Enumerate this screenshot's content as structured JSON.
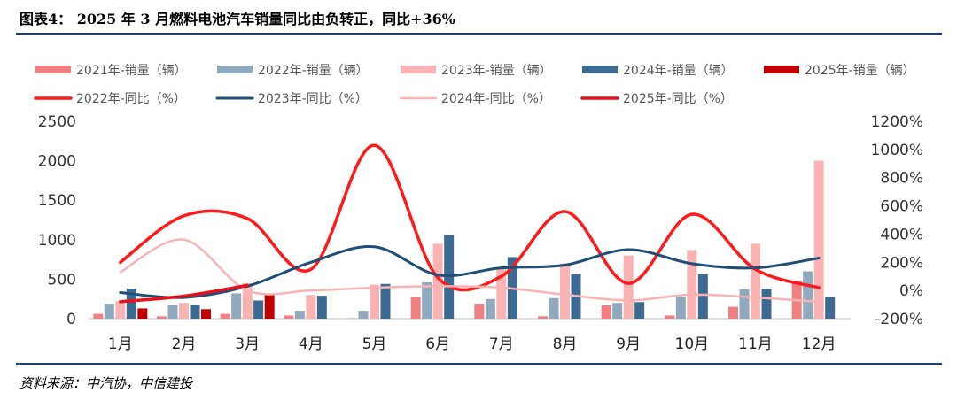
{
  "header": {
    "title": "图表4：    2025 年 3 月燃料电池汽车销量同比由负转正，同比+36%"
  },
  "footer": {
    "source": "资料来源：中汽协，中信建投"
  },
  "chart_data": {
    "type": "bar",
    "categories": [
      "1月",
      "2月",
      "3月",
      "4月",
      "5月",
      "6月",
      "7月",
      "8月",
      "9月",
      "10月",
      "11月",
      "12月"
    ],
    "y_left": {
      "ticks": [
        "0",
        "500",
        "1000",
        "1500",
        "2000",
        "2500"
      ],
      "ylim": [
        0,
        2500
      ]
    },
    "y_right": {
      "ticks": [
        "-200%",
        "0%",
        "200%",
        "400%",
        "600%",
        "800%",
        "1000%",
        "1200%"
      ],
      "ylim": [
        -200,
        1200
      ]
    },
    "bar_series": [
      {
        "name": "2021年-销量（辆）",
        "color": "#f08080",
        "values": [
          60,
          30,
          60,
          40,
          5,
          270,
          190,
          30,
          170,
          40,
          150,
          480
        ]
      },
      {
        "name": "2022年-销量（辆）",
        "color": "#8faabf",
        "values": [
          190,
          180,
          320,
          100,
          100,
          460,
          250,
          260,
          200,
          280,
          370,
          600
        ]
      },
      {
        "name": "2023年-销量（辆）",
        "color": "#f9b3b3",
        "values": [
          220,
          200,
          450,
          300,
          430,
          950,
          650,
          700,
          800,
          870,
          950,
          2000
        ]
      },
      {
        "name": "2024年-销量（辆）",
        "color": "#3c6a92",
        "values": [
          380,
          180,
          230,
          290,
          440,
          1060,
          780,
          560,
          210,
          560,
          380,
          270
        ]
      },
      {
        "name": "2025年-销量（辆）",
        "color": "#c00000",
        "values": [
          130,
          120,
          300,
          null,
          null,
          null,
          null,
          null,
          null,
          null,
          null,
          null
        ]
      }
    ],
    "line_series": [
      {
        "name": "2022年-同比（%）",
        "color": "#ff1a1a",
        "width": 3.5,
        "values": [
          200,
          530,
          510,
          150,
          1030,
          90,
          100,
          560,
          50,
          540,
          150,
          20
        ]
      },
      {
        "name": "2023年-同比（%）",
        "color": "#1f4e79",
        "width": 3,
        "values": [
          -15,
          -50,
          30,
          200,
          310,
          110,
          160,
          180,
          290,
          190,
          160,
          230
        ]
      },
      {
        "name": "2024年-同比（%）",
        "color": "#f9b3b3",
        "width": 2.5,
        "values": [
          130,
          360,
          0,
          0,
          20,
          30,
          20,
          -30,
          -70,
          -30,
          -50,
          -80
        ]
      },
      {
        "name": "2025年-同比（%）",
        "color": "#e8101a",
        "width": 3.5,
        "values": [
          -80,
          -40,
          36,
          null,
          null,
          null,
          null,
          null,
          null,
          null,
          null,
          null
        ]
      }
    ],
    "grid": false,
    "legend": "top"
  }
}
